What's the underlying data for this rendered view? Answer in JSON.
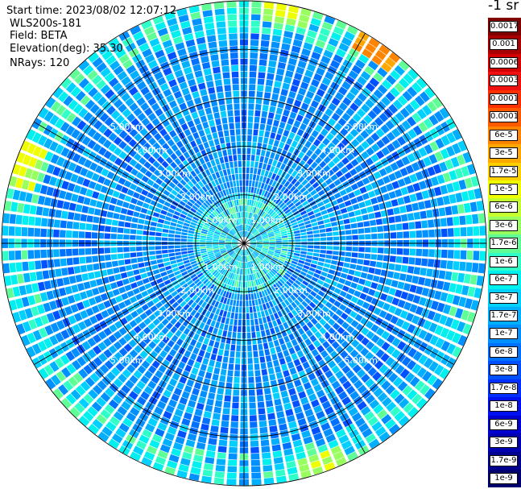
{
  "header": {
    "start_time": "Start time: 2023/08/02 12:07:12",
    "radar": "WLS200s-181",
    "field": "Field: BETA",
    "elevation": "Elevation(deg): 35.30",
    "nrays": "NRays: 120"
  },
  "colorbar": {
    "unit_title": "-1 sr",
    "levels": [
      {
        "label": "0.0017",
        "color": "#800000"
      },
      {
        "label": "0.001",
        "color": "#a80000"
      },
      {
        "label": "0.0006",
        "color": "#d20000"
      },
      {
        "label": "0.0003",
        "color": "#f01010"
      },
      {
        "label": "0.00017",
        "color": "#ff3000"
      },
      {
        "label": "0.0001",
        "color": "#ff5a00"
      },
      {
        "label": "6e-5",
        "color": "#ff8400"
      },
      {
        "label": "3e-5",
        "color": "#ffa800"
      },
      {
        "label": "1.7e-5",
        "color": "#ffd000"
      },
      {
        "label": "1e-5",
        "color": "#f0ff00"
      },
      {
        "label": "6e-6",
        "color": "#c4ff30"
      },
      {
        "label": "3e-6",
        "color": "#98ff5e"
      },
      {
        "label": "1.7e-6",
        "color": "#60ff96"
      },
      {
        "label": "1e-6",
        "color": "#30ffc8"
      },
      {
        "label": "6e-7",
        "color": "#00f0f0"
      },
      {
        "label": "3e-7",
        "color": "#00d0ff"
      },
      {
        "label": "1.7e-7",
        "color": "#00b0ff"
      },
      {
        "label": "1e-7",
        "color": "#0090ff"
      },
      {
        "label": "6e-8",
        "color": "#0070ff"
      },
      {
        "label": "3e-8",
        "color": "#0050ff"
      },
      {
        "label": "1.7e-8",
        "color": "#0030ff"
      },
      {
        "label": "1e-8",
        "color": "#0010f0"
      },
      {
        "label": "6e-9",
        "color": "#0000d0"
      },
      {
        "label": "3e-9",
        "color": "#0000b0"
      },
      {
        "label": "1.7e-9",
        "color": "#000090"
      },
      {
        "label": "1e-9",
        "color": "#000070"
      }
    ]
  },
  "chart_data": {
    "type": "heatmap",
    "projection": "polar PPI",
    "n_rays": 120,
    "max_range_km": 5.0,
    "range_rings_km": [
      1.0,
      2.0,
      3.0,
      4.0,
      5.0
    ],
    "range_ring_labels": [
      "1.00km",
      "2.00km",
      "3.00km",
      "4.00km",
      "5.00km"
    ],
    "spoke_angles_deg": [
      0,
      30,
      60,
      90,
      120,
      150,
      180,
      210,
      240,
      270,
      300,
      330
    ],
    "dominant_values": "mostly 3e-8 to 6e-7 (blue to cyan), higher 1e-6 to 1e-5 near center and at outer edge",
    "hotspots": [
      {
        "azimuth_deg": 35,
        "range_km": 5.0,
        "value": "6e-5 to 3e-5"
      },
      {
        "azimuth_deg": 10,
        "range_km": 5.1,
        "value": "1e-5"
      },
      {
        "azimuth_deg": 160,
        "range_km": 5.0,
        "value": "1e-5"
      },
      {
        "azimuth_deg": 290,
        "range_km": 4.9,
        "value": "1e-5"
      }
    ]
  }
}
